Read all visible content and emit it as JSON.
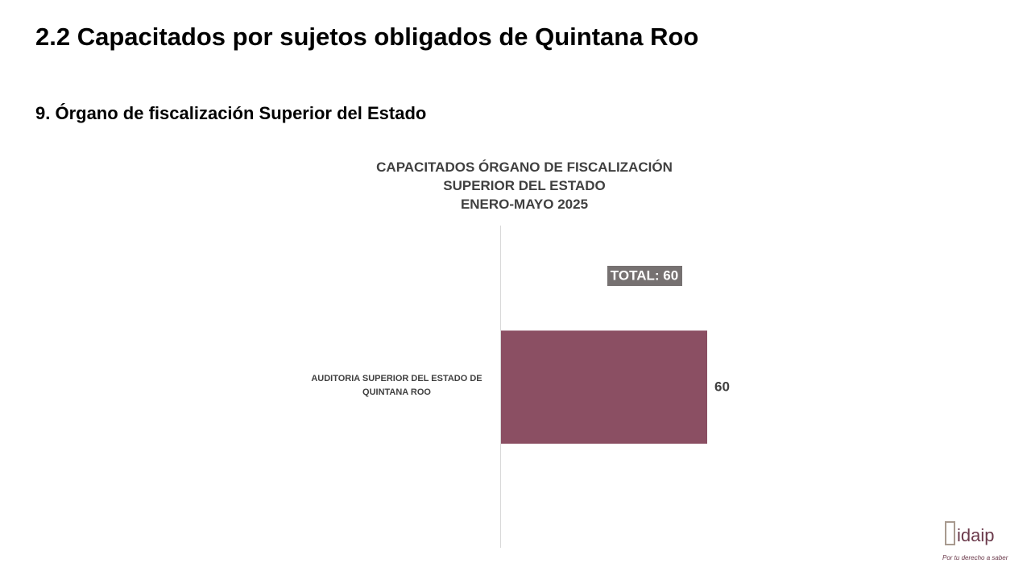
{
  "slide_title": "2.2 Capacitados por sujetos obligados de Quintana Roo",
  "section_title": "9. Órgano de fiscalización Superior del Estado",
  "chart_data": {
    "type": "hbar",
    "title": "CAPACITADOS ÓRGANO DE FISCALIZACIÓN SUPERIOR DEL ESTADO",
    "subtitle": "ENERO-MAYO 2025",
    "annotation": "TOTAL: 60",
    "categories": [
      "AUDITORIA SUPERIOR DEL ESTADO DE QUINTANA ROO"
    ],
    "values": [
      60
    ],
    "color": "#8b4f63"
  },
  "logo": {
    "name": "idaip",
    "tagline": "Por tu derecho a saber"
  }
}
